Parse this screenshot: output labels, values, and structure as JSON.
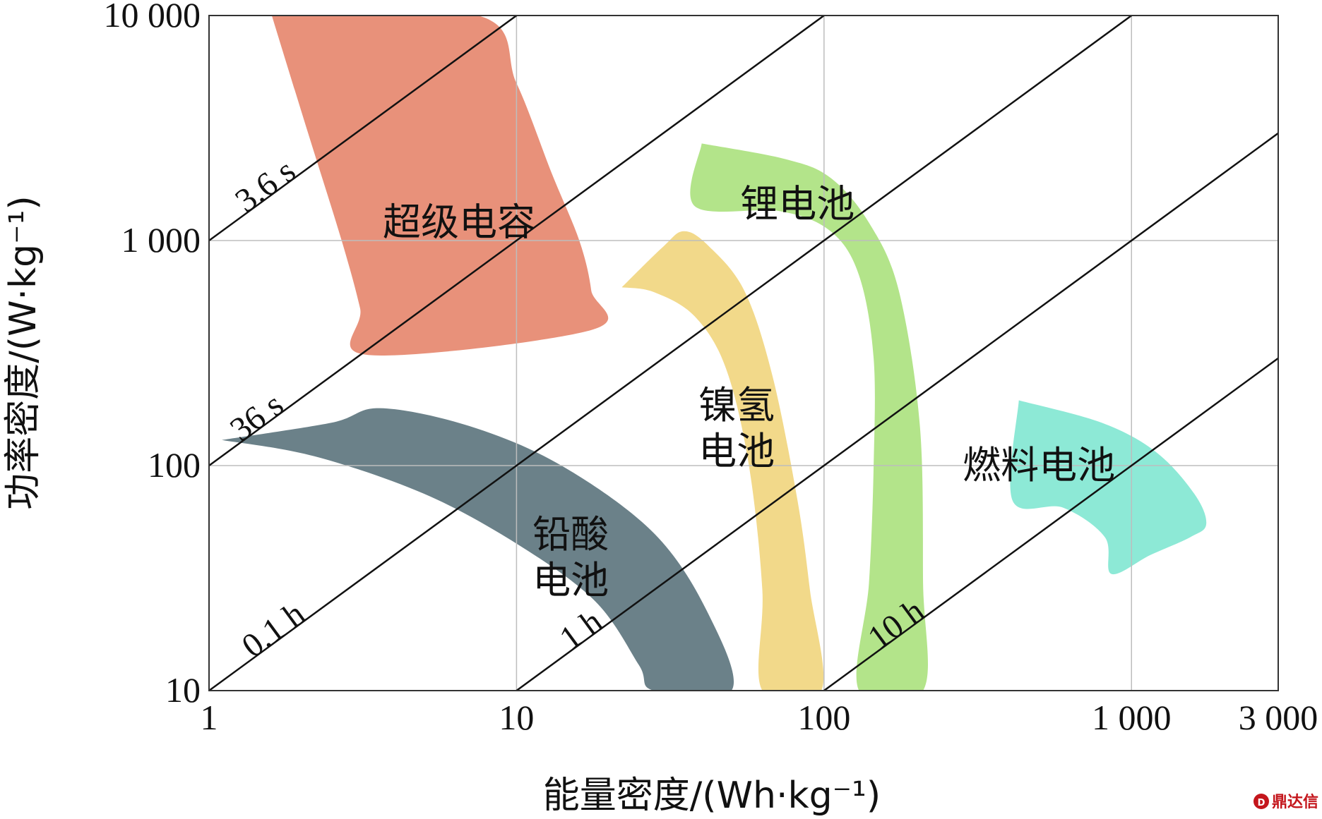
{
  "chart_data": {
    "type": "area",
    "xscale": "log",
    "yscale": "log",
    "xlabel": "能量密度/(Wh·kg⁻¹)",
    "ylabel": "功率密度/(W·kg⁻¹)",
    "xlim": [
      1,
      3000
    ],
    "ylim": [
      10,
      10000
    ],
    "x_ticks": [
      {
        "value": 1,
        "label": "1"
      },
      {
        "value": 10,
        "label": "10"
      },
      {
        "value": 100,
        "label": "100"
      },
      {
        "value": 1000,
        "label": "1 000"
      },
      {
        "value": 3000,
        "label": "3 000"
      }
    ],
    "y_ticks": [
      {
        "value": 10,
        "label": "10"
      },
      {
        "value": 100,
        "label": "100"
      },
      {
        "value": 1000,
        "label": "1 000"
      },
      {
        "value": 10000,
        "label": "10 000"
      }
    ],
    "grid": true,
    "discharge_time_lines": [
      {
        "label": "3.6 s",
        "hours": 0.001,
        "label_at": {
          "x": 1.6,
          "y": 1600
        }
      },
      {
        "label": "36 s",
        "hours": 0.01,
        "label_at": {
          "x": 1.5,
          "y": 150
        }
      },
      {
        "label": "0.1 h",
        "hours": 0.1,
        "label_at": {
          "x": 1.7,
          "y": 17
        }
      },
      {
        "label": "1 h",
        "hours": 1,
        "label_at": {
          "x": 17,
          "y": 17
        }
      },
      {
        "label": "10 h",
        "hours": 10,
        "label_at": {
          "x": 180,
          "y": 18
        }
      }
    ],
    "series": [
      {
        "name": "超级电容",
        "color": "#e8917a",
        "label_at": {
          "x": 6.5,
          "y": 1200
        },
        "polygon": [
          [
            1.6,
            10000
          ],
          [
            7.5,
            10000
          ],
          [
            10,
            5000
          ],
          [
            13,
            2000
          ],
          [
            16,
            1000
          ],
          [
            17.5,
            600
          ],
          [
            17.5,
            400
          ],
          [
            3.3,
            310
          ],
          [
            3.1,
            500
          ],
          [
            2.7,
            1000
          ],
          [
            2.1,
            3000
          ],
          [
            1.6,
            10000
          ]
        ]
      },
      {
        "name": "铅酸电池",
        "color": "#6b8189",
        "label_at": {
          "x": 15,
          "y": 40
        },
        "polygon": [
          [
            1.1,
            130
          ],
          [
            2.5,
            155
          ],
          [
            3.6,
            180
          ],
          [
            7,
            150
          ],
          [
            14,
            100
          ],
          [
            28,
            50
          ],
          [
            42,
            22
          ],
          [
            50,
            10
          ],
          [
            28,
            10
          ],
          [
            25,
            13
          ],
          [
            18,
            25
          ],
          [
            10,
            45
          ],
          [
            5,
            75
          ],
          [
            2.2,
            110
          ],
          [
            1.1,
            130
          ]
        ]
      },
      {
        "name": "镍氢电池",
        "color": "#f2d98a",
        "label_at": {
          "x": 52,
          "y": 150
        },
        "polygon": [
          [
            22,
            620
          ],
          [
            30,
            940
          ],
          [
            35,
            1100
          ],
          [
            42,
            950
          ],
          [
            55,
            600
          ],
          [
            68,
            250
          ],
          [
            82,
            70
          ],
          [
            90,
            28
          ],
          [
            98,
            10
          ],
          [
            63,
            10
          ],
          [
            63,
            28
          ],
          [
            57,
            100
          ],
          [
            48,
            270
          ],
          [
            38,
            460
          ],
          [
            28,
            590
          ],
          [
            22,
            620
          ]
        ]
      },
      {
        "name": "锂电池",
        "color": "#b3e48a",
        "label_at": {
          "x": 82,
          "y": 1450
        },
        "polygon": [
          [
            40,
            2700
          ],
          [
            75,
            2300
          ],
          [
            105,
            1900
          ],
          [
            140,
            1200
          ],
          [
            175,
            600
          ],
          [
            205,
            150
          ],
          [
            210,
            30
          ],
          [
            210,
            10
          ],
          [
            130,
            10
          ],
          [
            140,
            30
          ],
          [
            145,
            100
          ],
          [
            145,
            300
          ],
          [
            130,
            700
          ],
          [
            105,
            1100
          ],
          [
            72,
            1350
          ],
          [
            38,
            1420
          ],
          [
            40,
            2700
          ]
        ]
      },
      {
        "name": "燃料电池",
        "color": "#8de9d6",
        "label_at": {
          "x": 500,
          "y": 100
        },
        "polygon": [
          [
            430,
            195
          ],
          [
            800,
            155
          ],
          [
            1200,
            115
          ],
          [
            1600,
            75
          ],
          [
            1750,
            55
          ],
          [
            1550,
            48
          ],
          [
            1150,
            40
          ],
          [
            860,
            33
          ],
          [
            820,
            48
          ],
          [
            600,
            65
          ],
          [
            410,
            70
          ],
          [
            430,
            195
          ]
        ]
      }
    ]
  },
  "watermark": {
    "logo": "鼎达信"
  }
}
